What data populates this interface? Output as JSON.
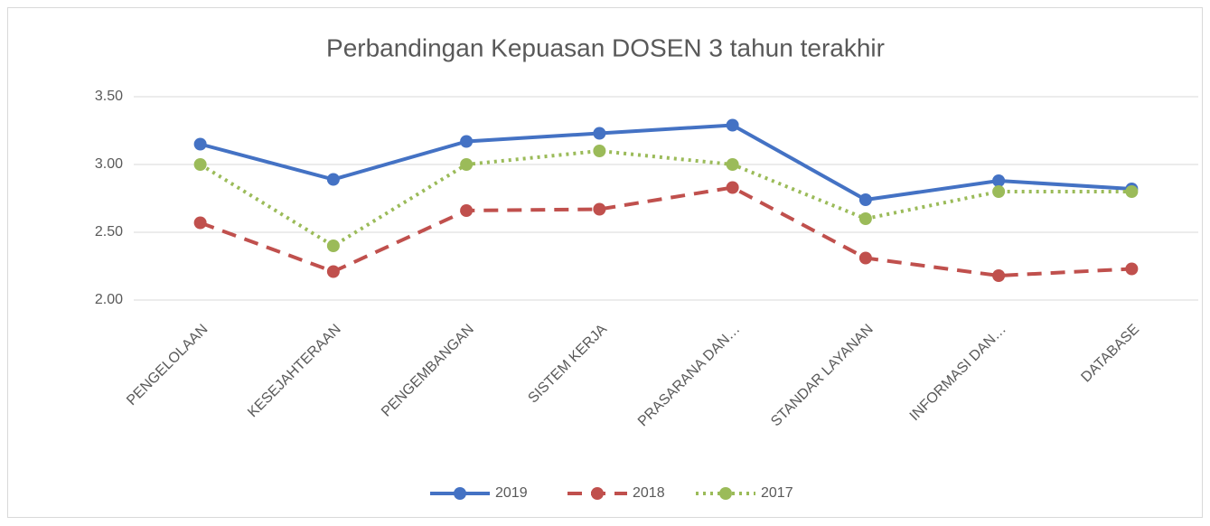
{
  "chart_data": {
    "type": "line",
    "title": "Perbandingan Kepuasan DOSEN 3 tahun terakhir",
    "categories": [
      "PENGELOLAAN",
      "KESEJAHTERAAN",
      "PENGEMBANGAN",
      "SISTEM KERJA",
      "PRASARANA DAN…",
      "STANDAR LAYANAN",
      "INFORMASI DAN…",
      "DATABASE"
    ],
    "series": [
      {
        "name": "2019",
        "color": "#4472c4",
        "line_style": "solid",
        "values": [
          3.15,
          2.89,
          3.17,
          3.23,
          3.29,
          2.74,
          2.88,
          2.82
        ]
      },
      {
        "name": "2018",
        "color": "#c0504d",
        "line_style": "dashed",
        "values": [
          2.57,
          2.21,
          2.66,
          2.67,
          2.83,
          2.31,
          2.18,
          2.23
        ]
      },
      {
        "name": "2017",
        "color": "#9bbb59",
        "line_style": "dotted",
        "values": [
          3.0,
          2.4,
          3.0,
          3.1,
          3.0,
          2.6,
          2.8,
          2.8
        ]
      }
    ],
    "ylim": [
      2,
      3.5
    ],
    "yticks": [
      {
        "value": 2,
        "label": "2.00"
      },
      {
        "value": 2.5,
        "label": "2.50"
      },
      {
        "value": 3,
        "label": "3.00"
      },
      {
        "value": 3.5,
        "label": "3.50"
      }
    ],
    "grid": true,
    "legend": "bottom"
  }
}
